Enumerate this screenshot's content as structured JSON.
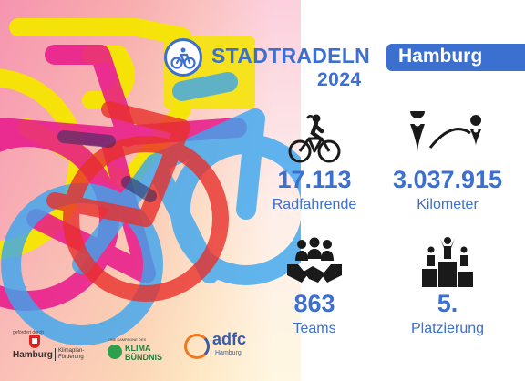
{
  "header": {
    "title": "STADTRADELN",
    "year": "2024",
    "city": "Hamburg"
  },
  "stats": [
    {
      "icon": "cyclist-icon",
      "value": "17.113",
      "label": "Radfahrende"
    },
    {
      "icon": "route-icon",
      "value": "3.037.915",
      "label": "Kilometer"
    },
    {
      "icon": "team-handshake-icon",
      "value": "863",
      "label": "Teams"
    },
    {
      "icon": "podium-icon",
      "value": "5.",
      "label": "Platzierung"
    }
  ],
  "footer": {
    "funded_by": "gefördert durch",
    "hamburg_name": "Hamburg",
    "hamburg_sub": "Klimaplan-\nFörderung",
    "klima_campaign": "EINE KAMPAGNE DES",
    "klima_name": "KLIMA\nBÜNDNIS",
    "adfc_name": "adfc",
    "adfc_sub": "Hamburg"
  },
  "colors": {
    "brand_blue": "#3b6fd0",
    "bike_yellow": "#f5e600",
    "bike_magenta": "#e8178a",
    "bike_cyan": "#3aa6f0",
    "bike_red": "#e8302b"
  }
}
